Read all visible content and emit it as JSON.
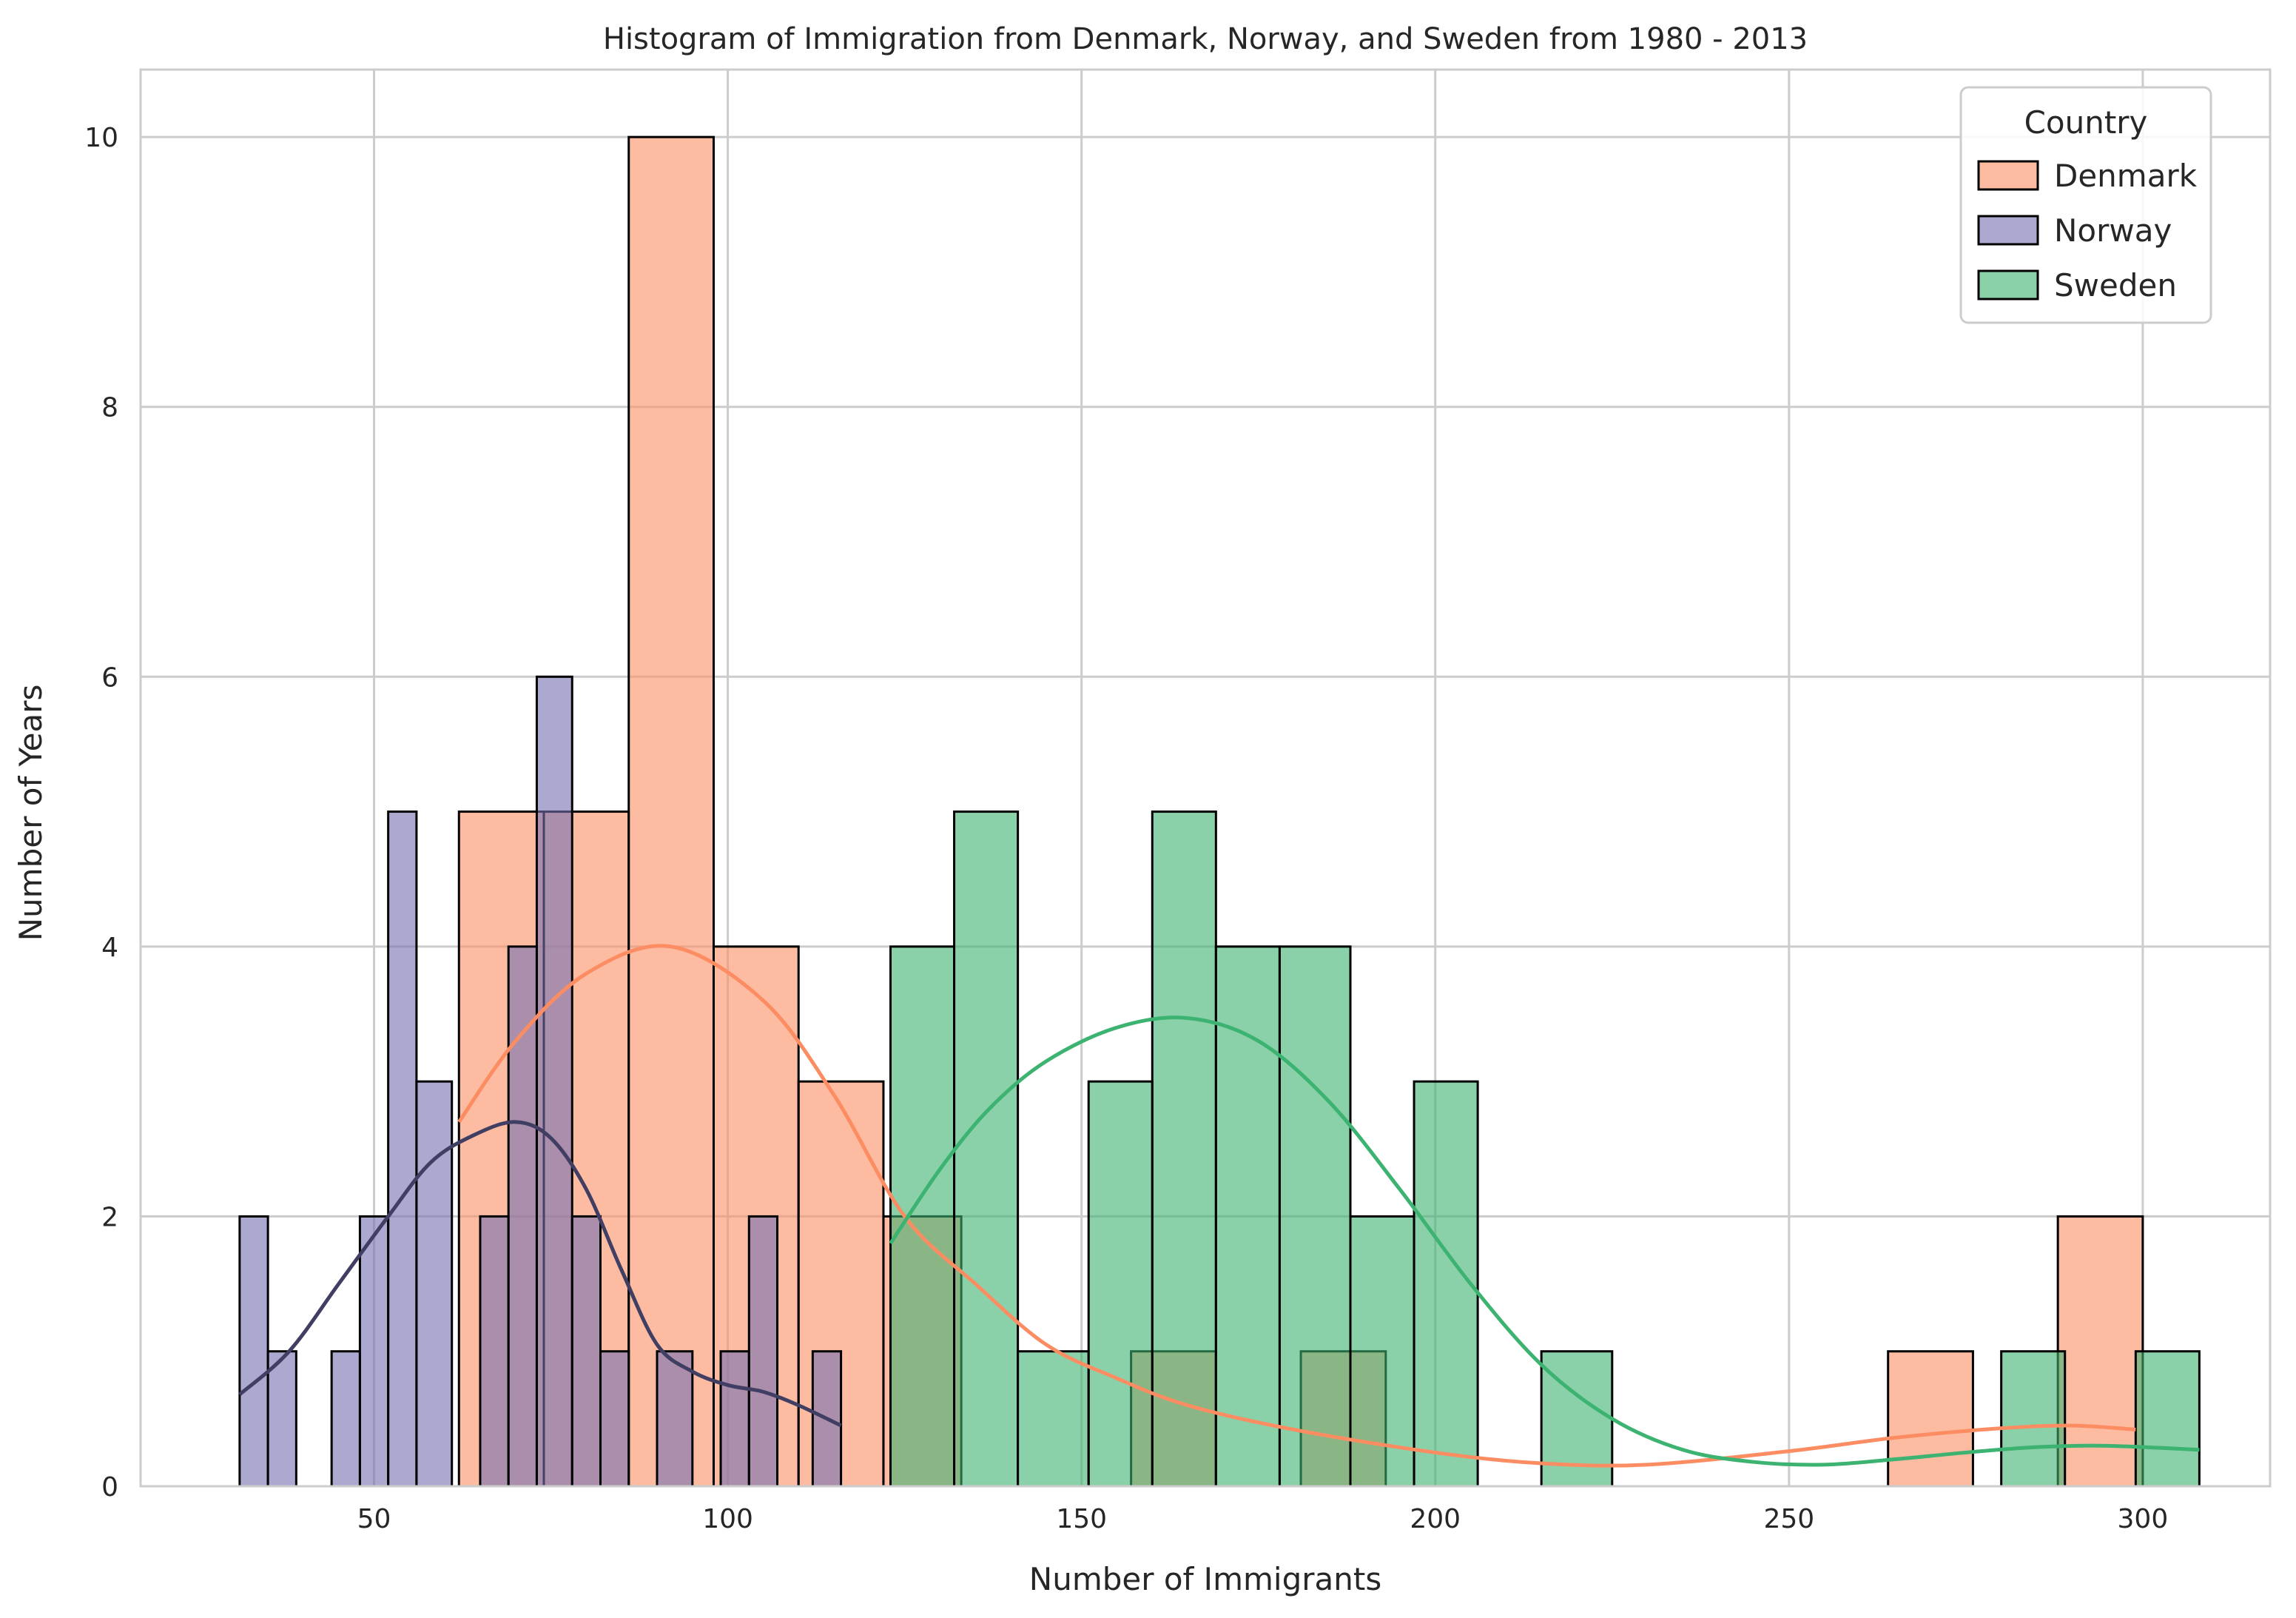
{
  "chart_data": {
    "type": "bar",
    "title": "Histogram of Immigration from Denmark, Norway, and Sweden from 1980 - 2013",
    "xlabel": "Number of Immigrants",
    "ylabel": "Number of Years",
    "xlim": [
      17,
      318
    ],
    "ylim": [
      0,
      10.5
    ],
    "xticks": [
      50,
      100,
      150,
      200,
      250,
      300
    ],
    "yticks": [
      0,
      2,
      4,
      6,
      8,
      10
    ],
    "grid": true,
    "legend": {
      "title": "Country",
      "placement": "top-right"
    },
    "series": [
      {
        "name": "Denmark",
        "color": "#fc8d62",
        "bins": [
          {
            "x0": 62,
            "x1": 74,
            "count": 5
          },
          {
            "x0": 74,
            "x1": 86,
            "count": 5
          },
          {
            "x0": 86,
            "x1": 98,
            "count": 10
          },
          {
            "x0": 98,
            "x1": 110,
            "count": 4
          },
          {
            "x0": 110,
            "x1": 122,
            "count": 3
          },
          {
            "x0": 122,
            "x1": 133,
            "count": 2
          },
          {
            "x0": 157,
            "x1": 169,
            "count": 1
          },
          {
            "x0": 181,
            "x1": 193,
            "count": 1
          },
          {
            "x0": 264,
            "x1": 276,
            "count": 1
          },
          {
            "x0": 288,
            "x1": 300,
            "count": 2
          }
        ],
        "kde": [
          [
            62,
            2.7
          ],
          [
            70,
            3.3
          ],
          [
            80,
            3.8
          ],
          [
            92,
            4.0
          ],
          [
            105,
            3.6
          ],
          [
            115,
            2.9
          ],
          [
            125,
            2.0
          ],
          [
            135,
            1.5
          ],
          [
            145,
            1.05
          ],
          [
            155,
            0.8
          ],
          [
            165,
            0.6
          ],
          [
            180,
            0.42
          ],
          [
            200,
            0.25
          ],
          [
            215,
            0.17
          ],
          [
            230,
            0.16
          ],
          [
            250,
            0.26
          ],
          [
            265,
            0.36
          ],
          [
            280,
            0.43
          ],
          [
            290,
            0.45
          ],
          [
            299,
            0.42
          ]
        ]
      },
      {
        "name": "Norway",
        "color": "#7570b3",
        "bins": [
          {
            "x0": 31,
            "x1": 35,
            "count": 2
          },
          {
            "x0": 35,
            "x1": 39,
            "count": 1
          },
          {
            "x0": 39,
            "x1": 44,
            "count": 0
          },
          {
            "x0": 44,
            "x1": 48,
            "count": 1
          },
          {
            "x0": 48,
            "x1": 52,
            "count": 2
          },
          {
            "x0": 52,
            "x1": 56,
            "count": 5
          },
          {
            "x0": 56,
            "x1": 61,
            "count": 3
          },
          {
            "x0": 61,
            "x1": 65,
            "count": 0
          },
          {
            "x0": 65,
            "x1": 69,
            "count": 2
          },
          {
            "x0": 69,
            "x1": 73,
            "count": 4
          },
          {
            "x0": 73,
            "x1": 78,
            "count": 6
          },
          {
            "x0": 78,
            "x1": 82,
            "count": 2
          },
          {
            "x0": 82,
            "x1": 86,
            "count": 1
          },
          {
            "x0": 86,
            "x1": 90,
            "count": 0
          },
          {
            "x0": 90,
            "x1": 95,
            "count": 1
          },
          {
            "x0": 95,
            "x1": 99,
            "count": 0
          },
          {
            "x0": 99,
            "x1": 103,
            "count": 1
          },
          {
            "x0": 103,
            "x1": 107,
            "count": 2
          },
          {
            "x0": 107,
            "x1": 112,
            "count": 0
          },
          {
            "x0": 112,
            "x1": 116,
            "count": 1
          }
        ],
        "kde": [
          [
            31,
            0.68
          ],
          [
            38,
            1.0
          ],
          [
            45,
            1.5
          ],
          [
            52,
            2.0
          ],
          [
            58,
            2.4
          ],
          [
            64,
            2.6
          ],
          [
            70,
            2.7
          ],
          [
            75,
            2.58
          ],
          [
            80,
            2.2
          ],
          [
            85,
            1.6
          ],
          [
            90,
            1.05
          ],
          [
            95,
            0.85
          ],
          [
            100,
            0.75
          ],
          [
            105,
            0.7
          ],
          [
            110,
            0.6
          ],
          [
            116,
            0.45
          ]
        ]
      },
      {
        "name": "Sweden",
        "color": "#3cb371",
        "bins": [
          {
            "x0": 123,
            "x1": 132,
            "count": 4
          },
          {
            "x0": 132,
            "x1": 141,
            "count": 5
          },
          {
            "x0": 141,
            "x1": 151,
            "count": 1
          },
          {
            "x0": 151,
            "x1": 160,
            "count": 3
          },
          {
            "x0": 160,
            "x1": 169,
            "count": 5
          },
          {
            "x0": 169,
            "x1": 178,
            "count": 4
          },
          {
            "x0": 178,
            "x1": 188,
            "count": 4
          },
          {
            "x0": 188,
            "x1": 197,
            "count": 2
          },
          {
            "x0": 197,
            "x1": 206,
            "count": 3
          },
          {
            "x0": 206,
            "x1": 215,
            "count": 0
          },
          {
            "x0": 215,
            "x1": 225,
            "count": 1
          },
          {
            "x0": 225,
            "x1": 234,
            "count": 0
          },
          {
            "x0": 234,
            "x1": 243,
            "count": 0
          },
          {
            "x0": 243,
            "x1": 252,
            "count": 0
          },
          {
            "x0": 252,
            "x1": 262,
            "count": 0
          },
          {
            "x0": 262,
            "x1": 271,
            "count": 0
          },
          {
            "x0": 271,
            "x1": 280,
            "count": 0
          },
          {
            "x0": 280,
            "x1": 289,
            "count": 1
          },
          {
            "x0": 289,
            "x1": 299,
            "count": 0
          },
          {
            "x0": 299,
            "x1": 308,
            "count": 1
          }
        ],
        "kde": [
          [
            123,
            1.8
          ],
          [
            130,
            2.35
          ],
          [
            137,
            2.8
          ],
          [
            145,
            3.15
          ],
          [
            155,
            3.4
          ],
          [
            165,
            3.47
          ],
          [
            175,
            3.3
          ],
          [
            185,
            2.85
          ],
          [
            195,
            2.2
          ],
          [
            205,
            1.5
          ],
          [
            215,
            0.9
          ],
          [
            225,
            0.5
          ],
          [
            235,
            0.27
          ],
          [
            245,
            0.18
          ],
          [
            255,
            0.16
          ],
          [
            265,
            0.2
          ],
          [
            275,
            0.25
          ],
          [
            285,
            0.29
          ],
          [
            295,
            0.3
          ],
          [
            308,
            0.27
          ]
        ]
      }
    ]
  }
}
